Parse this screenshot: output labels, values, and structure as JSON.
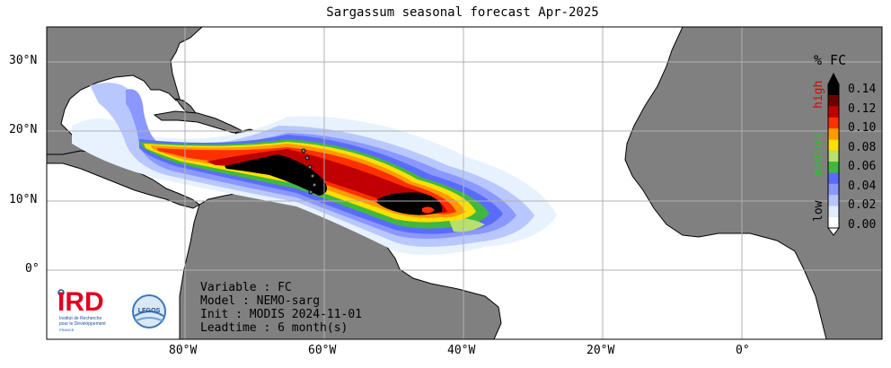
{
  "title": "Sargassum seasonal forecast  Apr-2025",
  "axes": {
    "lat_labels": [
      "30°N",
      "20°N",
      "10°N",
      "0°"
    ],
    "lon_labels": [
      "80°W",
      "60°W",
      "40°W",
      "20°W",
      "0°"
    ]
  },
  "colorbar": {
    "unit": "% FC",
    "ticks": [
      "0.14",
      "0.12",
      "0.10",
      "0.08",
      "0.06",
      "0.04",
      "0.02",
      "0.00"
    ],
    "labels": {
      "high": "high",
      "medium": "medium",
      "low": "low"
    },
    "colors": [
      "#000000",
      "#6b0000",
      "#c00000",
      "#ff3000",
      "#ff9a00",
      "#ffe000",
      "#b8e070",
      "#40b840",
      "#5a6cff",
      "#8b98ff",
      "#b8c4ff",
      "#e0ecff",
      "#ffffff"
    ],
    "label_colors": {
      "high": "#e00000",
      "medium": "#30c030",
      "low": "#000000"
    }
  },
  "info": {
    "variable": "Variable : FC",
    "model": "Model : NEMO-sarg",
    "init": "Init : MODIS 2024-11-01",
    "leadtime": "Leadtime : 6 month(s)"
  },
  "logos": {
    "ird_letters": "IRD",
    "ird_caption_1": "Institut de Recherche",
    "ird_caption_2": "pour le Développement",
    "ird_caption_3": "FRANCE",
    "legos": "LEGOS"
  },
  "colors": {
    "land": "#808080",
    "ocean": "#ffffff",
    "grid": "#b0b0b0"
  }
}
